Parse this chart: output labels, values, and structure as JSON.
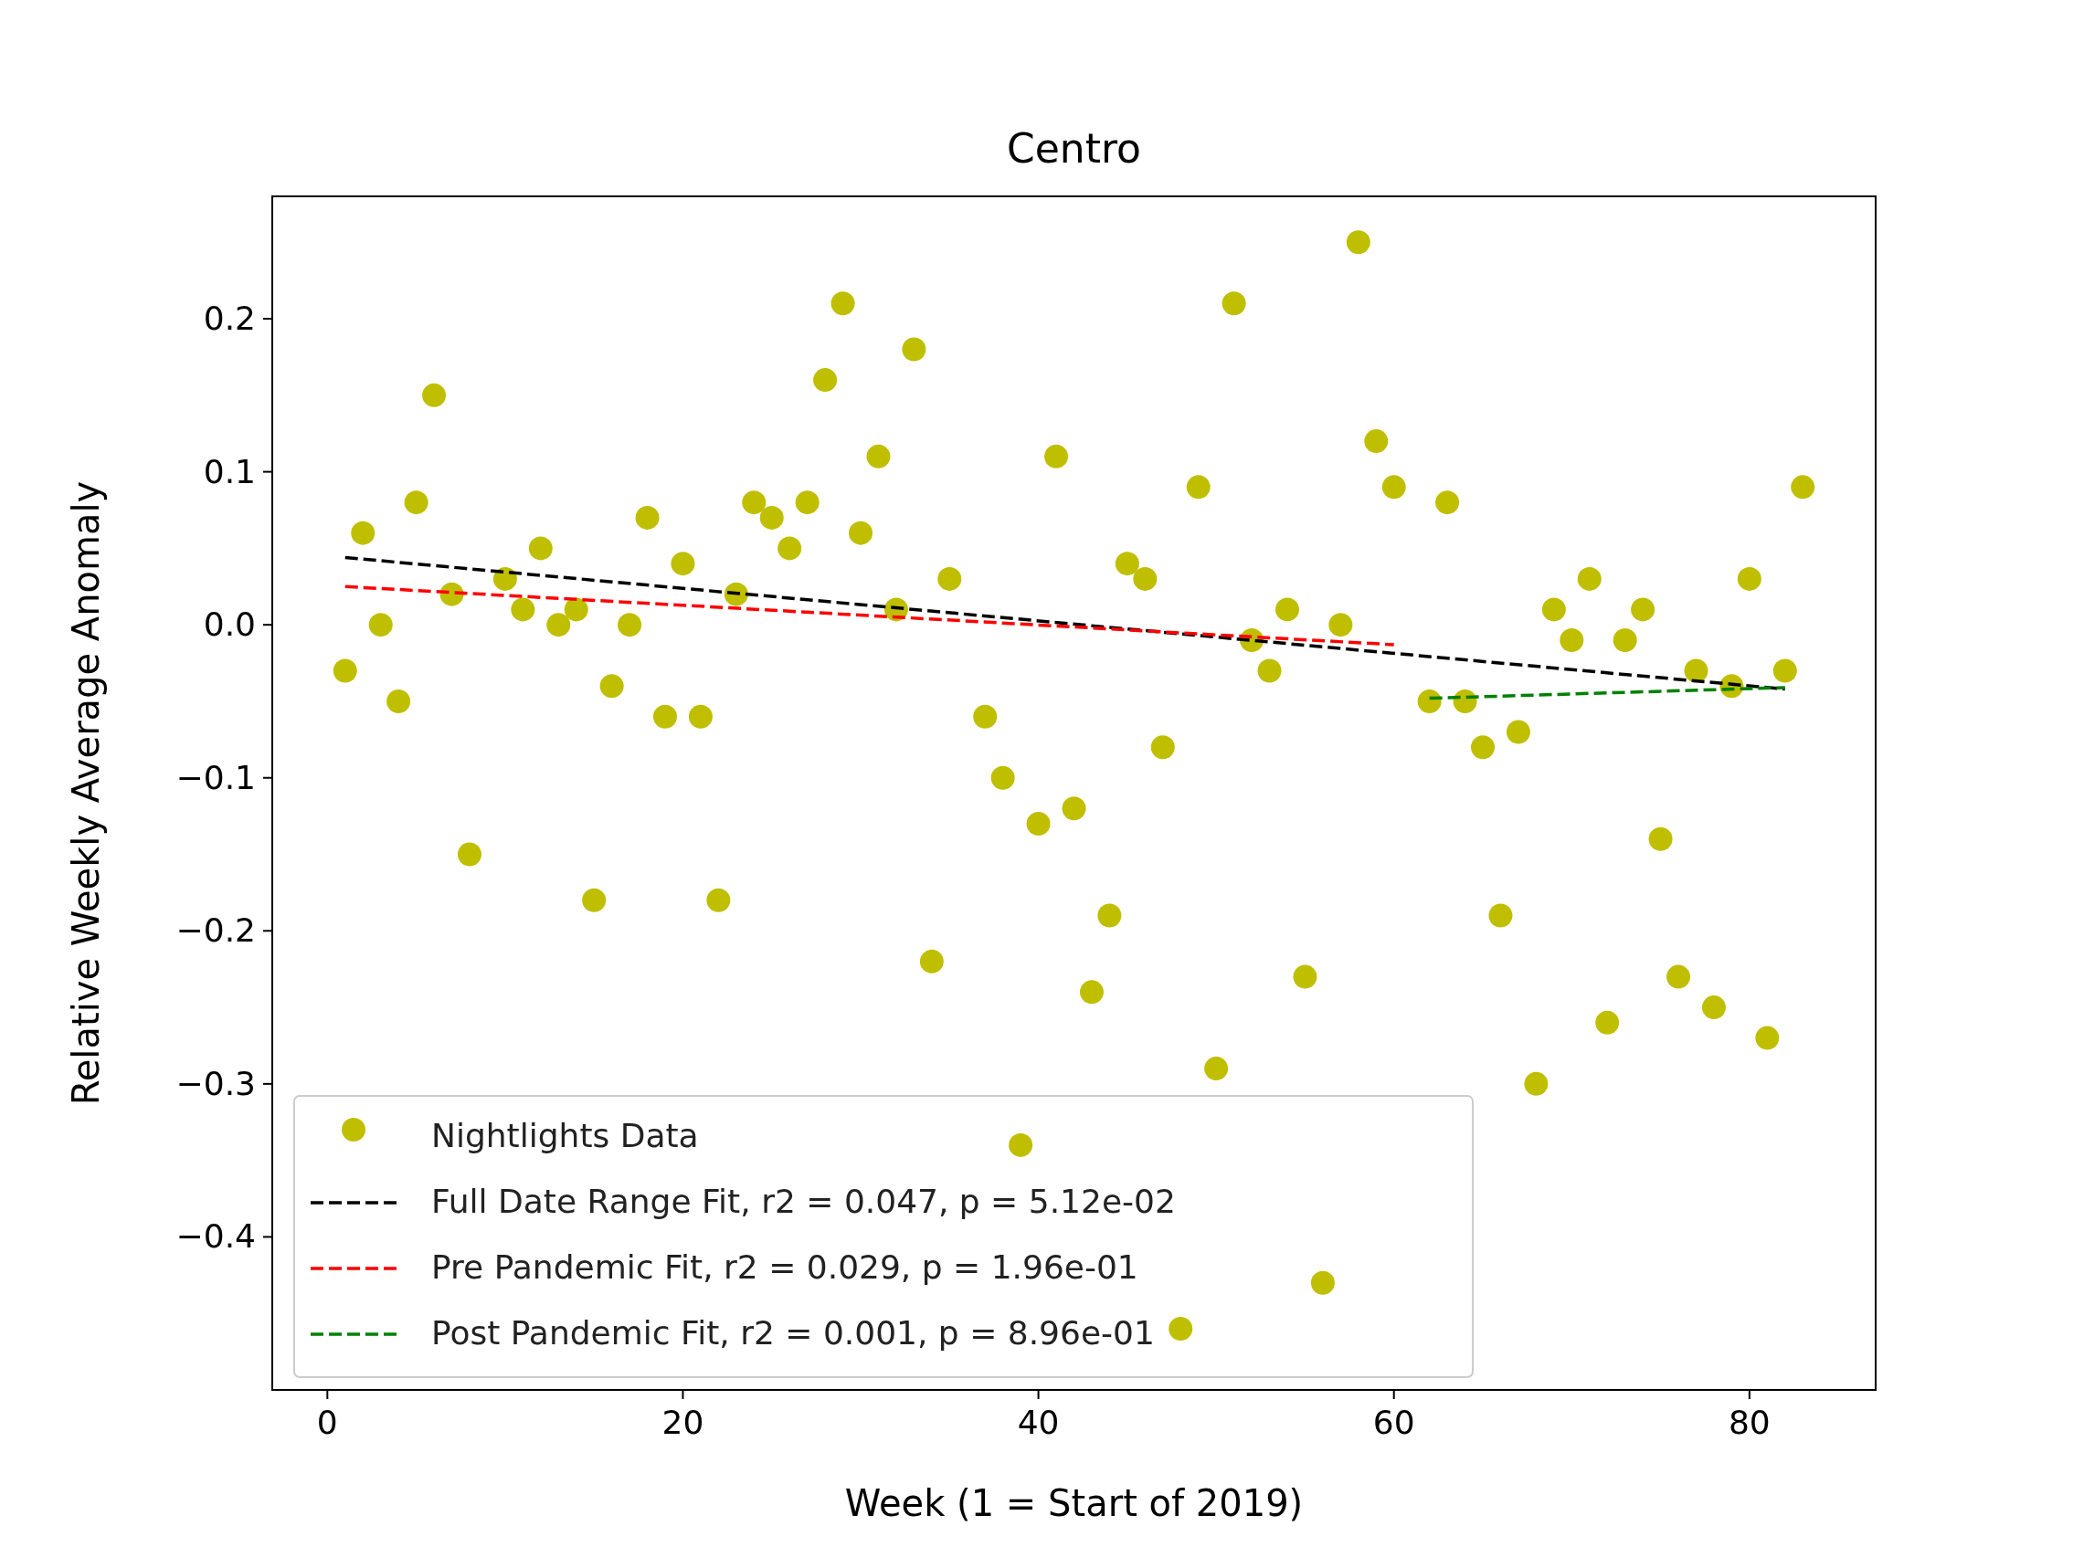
{
  "chart_data": {
    "type": "scatter",
    "title": "Centro",
    "xlabel": "Week (1 = Start of 2019)",
    "ylabel": "Relative Weekly Average Anomaly",
    "xlim": [
      -3.1,
      87.1
    ],
    "ylim": [
      -0.5,
      0.28
    ],
    "xticks": [
      0,
      20,
      40,
      60,
      80
    ],
    "yticks": [
      {
        "value": -0.4,
        "label": "−0.4"
      },
      {
        "value": -0.3,
        "label": "−0.3"
      },
      {
        "value": -0.2,
        "label": "−0.2"
      },
      {
        "value": -0.1,
        "label": "−0.1"
      },
      {
        "value": 0,
        "label": "0.0"
      },
      {
        "value": 0.1,
        "label": "0.1"
      },
      {
        "value": 0.2,
        "label": "0.2"
      }
    ],
    "grid": false,
    "legend": "bottom left",
    "series": [
      {
        "name": "Nightlights Data",
        "type": "scatter",
        "marker": "circle",
        "color": "#bfbf00",
        "x": [
          1,
          2,
          3,
          4,
          5,
          6,
          7,
          8,
          10,
          11,
          12,
          13,
          14,
          15,
          16,
          17,
          18,
          19,
          20,
          21,
          22,
          23,
          24,
          25,
          26,
          27,
          28,
          29,
          30,
          31,
          32,
          33,
          34,
          35,
          37,
          38,
          39,
          40,
          41,
          42,
          43,
          44,
          45,
          46,
          47,
          48,
          49,
          50,
          51,
          52,
          53,
          54,
          55,
          56,
          57,
          58,
          59,
          60,
          62,
          63,
          64,
          65,
          66,
          67,
          68,
          69,
          70,
          71,
          72,
          73,
          74,
          75,
          76,
          77,
          78,
          79,
          80,
          81,
          82,
          83
        ],
        "values": [
          -0.03,
          0.06,
          0.0,
          -0.05,
          0.08,
          0.15,
          0.02,
          -0.15,
          0.03,
          0.01,
          0.05,
          0.0,
          0.01,
          -0.18,
          -0.04,
          0.0,
          0.07,
          -0.06,
          0.04,
          -0.06,
          -0.18,
          0.02,
          0.08,
          0.07,
          0.05,
          0.08,
          0.16,
          0.21,
          0.06,
          0.11,
          0.01,
          0.18,
          -0.22,
          0.03,
          -0.06,
          -0.1,
          -0.34,
          -0.13,
          0.11,
          -0.12,
          -0.24,
          -0.19,
          0.04,
          0.03,
          -0.08,
          -0.46,
          0.09,
          -0.29,
          0.21,
          -0.01,
          -0.03,
          0.01,
          -0.23,
          -0.43,
          0.0,
          0.25,
          0.12,
          0.09,
          -0.05,
          0.08,
          -0.05,
          -0.08,
          -0.19,
          -0.07,
          -0.3,
          0.01,
          -0.01,
          0.03,
          -0.26,
          -0.01,
          0.01,
          -0.14,
          -0.23,
          -0.03,
          -0.25,
          -0.04,
          0.03,
          -0.27,
          -0.03,
          0.09
        ]
      },
      {
        "name": "Full Date Range Fit, r2 = 0.047, p = 5.12e-02",
        "type": "line",
        "line_style": "dashed",
        "color": "#000000",
        "x": [
          1,
          82
        ],
        "values": [
          0.044,
          -0.042
        ]
      },
      {
        "name": "Pre Pandemic Fit, r2 = 0.029, p = 1.96e-01",
        "type": "line",
        "line_style": "dashed",
        "color": "#ff0000",
        "x": [
          1,
          60
        ],
        "values": [
          0.025,
          -0.013
        ]
      },
      {
        "name": "Post Pandemic Fit, r2 = 0.001, p = 8.96e-01",
        "type": "line",
        "line_style": "dashed",
        "color": "#008000",
        "x": [
          62,
          82
        ],
        "values": [
          -0.048,
          -0.041
        ]
      }
    ]
  }
}
